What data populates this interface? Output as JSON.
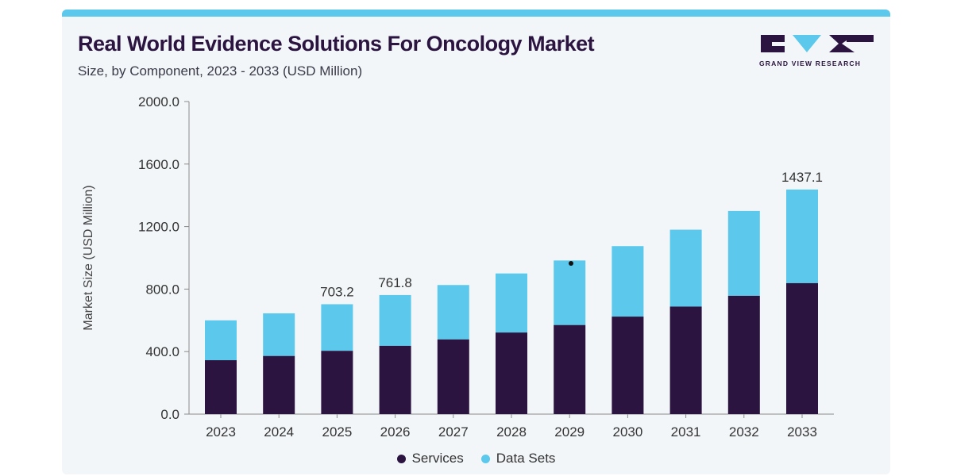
{
  "header": {
    "title": "Real World Evidence Solutions For Oncology Market",
    "subtitle": "Size, by Component, 2023 - 2033 (USD Million)"
  },
  "logo": {
    "text": "GRAND VIEW RESEARCH",
    "colors": {
      "dark": "#2b1440",
      "light": "#5bc8ec"
    }
  },
  "colors": {
    "services": "#2b1440",
    "data_sets": "#5bc8ec",
    "axis": "#8a8a8a",
    "background": "#f3f6f9",
    "accent_strip": "#5bc8ec"
  },
  "chart_data": {
    "type": "bar",
    "stacked": true,
    "title": "Real World Evidence Solutions For Oncology Market",
    "subtitle": "Size, by Component, 2023 - 2033 (USD Million)",
    "ylabel": "Market Size (USD Million)",
    "xlabel": "",
    "categories": [
      "2023",
      "2024",
      "2025",
      "2026",
      "2027",
      "2028",
      "2029",
      "2030",
      "2031",
      "2032",
      "2033"
    ],
    "series": [
      {
        "name": "Services",
        "values": [
          345,
          372,
          405,
          437,
          478,
          522,
          570,
          624,
          688,
          757,
          838
        ]
      },
      {
        "name": "Data Sets",
        "values": [
          255,
          273,
          298.2,
          324.8,
          348,
          378,
          413,
          451,
          492,
          543,
          599.1
        ]
      }
    ],
    "data_labels": [
      {
        "category": "2025",
        "text": "703.2"
      },
      {
        "category": "2026",
        "text": "761.8"
      },
      {
        "category": "2033",
        "text": "1437.1"
      }
    ],
    "ylim": [
      0,
      2000
    ],
    "yticks": [
      "0.0",
      "400.0",
      "800.0",
      "1200.0",
      "1600.0",
      "2000.0"
    ],
    "ytick_values": [
      0,
      400,
      800,
      1200,
      1600,
      2000
    ],
    "grid": false,
    "legend_position": "bottom-center"
  }
}
